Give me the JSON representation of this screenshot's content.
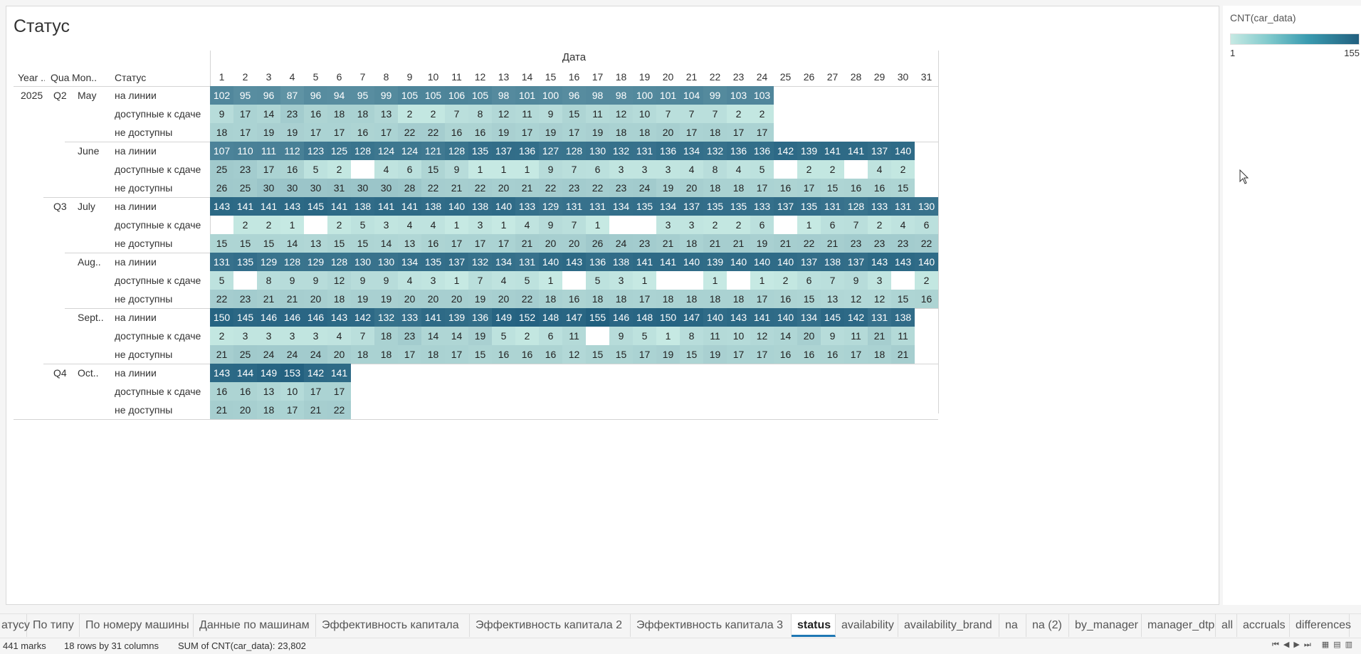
{
  "sheet_title": "Статус",
  "column_header_title": "Дата",
  "row_header_labels": [
    "Year ..",
    "Qua..",
    "Mon..",
    "Статус"
  ],
  "status_labels": [
    "на линии",
    "доступные к сдаче",
    "не доступны"
  ],
  "columns": [
    "1",
    "2",
    "3",
    "4",
    "5",
    "6",
    "7",
    "8",
    "9",
    "10",
    "11",
    "12",
    "13",
    "14",
    "15",
    "16",
    "17",
    "18",
    "19",
    "20",
    "21",
    "22",
    "23",
    "24",
    "25",
    "26",
    "27",
    "28",
    "29",
    "30",
    "31"
  ],
  "rows": [
    {
      "year": "2025",
      "quarter": "Q2",
      "month": "May",
      "values": [
        [
          102,
          95,
          96,
          87,
          96,
          94,
          95,
          99,
          105,
          105,
          106,
          105,
          98,
          101,
          100,
          96,
          98,
          98,
          100,
          101,
          104,
          99,
          103,
          103,
          null,
          null,
          null,
          null,
          null,
          null,
          null
        ],
        [
          9,
          17,
          14,
          23,
          16,
          18,
          18,
          13,
          2,
          2,
          7,
          8,
          12,
          11,
          9,
          15,
          11,
          12,
          10,
          7,
          7,
          7,
          2,
          2,
          null,
          null,
          null,
          null,
          null,
          null,
          null
        ],
        [
          18,
          17,
          19,
          19,
          17,
          17,
          16,
          17,
          22,
          22,
          16,
          16,
          19,
          17,
          19,
          17,
          19,
          18,
          18,
          20,
          17,
          18,
          17,
          17,
          null,
          null,
          null,
          null,
          null,
          null,
          null
        ]
      ]
    },
    {
      "year": "",
      "quarter": "",
      "month": "June",
      "values": [
        [
          107,
          110,
          111,
          112,
          123,
          125,
          128,
          124,
          124,
          121,
          128,
          135,
          137,
          136,
          127,
          128,
          130,
          132,
          131,
          136,
          134,
          132,
          136,
          136,
          142,
          139,
          141,
          141,
          137,
          140,
          null
        ],
        [
          25,
          23,
          17,
          16,
          5,
          2,
          null,
          4,
          6,
          15,
          9,
          1,
          1,
          1,
          9,
          7,
          6,
          3,
          3,
          3,
          4,
          8,
          4,
          5,
          null,
          2,
          2,
          null,
          4,
          2,
          null
        ],
        [
          26,
          25,
          30,
          30,
          30,
          31,
          30,
          30,
          28,
          22,
          21,
          22,
          20,
          21,
          22,
          23,
          22,
          23,
          24,
          19,
          20,
          18,
          18,
          17,
          16,
          17,
          15,
          16,
          16,
          15,
          null
        ]
      ]
    },
    {
      "year": "",
      "quarter": "Q3",
      "month": "July",
      "values": [
        [
          143,
          141,
          141,
          143,
          145,
          141,
          138,
          141,
          141,
          138,
          140,
          138,
          140,
          133,
          129,
          131,
          131,
          134,
          135,
          134,
          137,
          135,
          135,
          133,
          137,
          135,
          131,
          128,
          133,
          131,
          130
        ],
        [
          null,
          2,
          2,
          1,
          null,
          2,
          5,
          3,
          4,
          4,
          1,
          3,
          1,
          4,
          9,
          7,
          1,
          null,
          null,
          3,
          3,
          2,
          2,
          6,
          null,
          1,
          6,
          7,
          2,
          4,
          6
        ],
        [
          15,
          15,
          15,
          14,
          13,
          15,
          15,
          14,
          13,
          16,
          17,
          17,
          17,
          21,
          20,
          20,
          26,
          24,
          23,
          21,
          18,
          21,
          21,
          19,
          21,
          22,
          21,
          23,
          23,
          23,
          22
        ]
      ]
    },
    {
      "year": "",
      "quarter": "",
      "month": "Aug..",
      "values": [
        [
          131,
          135,
          129,
          128,
          129,
          128,
          130,
          130,
          134,
          135,
          137,
          132,
          134,
          131,
          140,
          143,
          136,
          138,
          141,
          141,
          140,
          139,
          140,
          140,
          140,
          137,
          138,
          137,
          143,
          143,
          140
        ],
        [
          5,
          null,
          8,
          9,
          9,
          12,
          9,
          9,
          4,
          3,
          1,
          7,
          4,
          5,
          1,
          null,
          5,
          3,
          1,
          null,
          null,
          1,
          null,
          1,
          2,
          6,
          7,
          9,
          3,
          null,
          2
        ],
        [
          22,
          23,
          21,
          21,
          20,
          18,
          19,
          19,
          20,
          20,
          20,
          19,
          20,
          22,
          18,
          16,
          18,
          18,
          17,
          18,
          18,
          18,
          18,
          17,
          16,
          15,
          13,
          12,
          12,
          15,
          16
        ]
      ]
    },
    {
      "year": "",
      "quarter": "",
      "month": "Sept..",
      "values": [
        [
          150,
          145,
          146,
          146,
          146,
          143,
          142,
          132,
          133,
          141,
          139,
          136,
          149,
          152,
          148,
          147,
          155,
          146,
          148,
          150,
          147,
          140,
          143,
          141,
          140,
          134,
          145,
          142,
          131,
          138,
          null
        ],
        [
          2,
          3,
          3,
          3,
          3,
          4,
          7,
          18,
          23,
          14,
          14,
          19,
          5,
          2,
          6,
          11,
          null,
          9,
          5,
          1,
          8,
          11,
          10,
          12,
          14,
          20,
          9,
          11,
          21,
          11,
          null
        ],
        [
          21,
          25,
          24,
          24,
          24,
          20,
          18,
          18,
          17,
          18,
          17,
          15,
          16,
          16,
          16,
          12,
          15,
          15,
          17,
          19,
          15,
          19,
          17,
          17,
          16,
          16,
          16,
          17,
          18,
          21,
          null
        ]
      ]
    },
    {
      "year": "",
      "quarter": "Q4",
      "month": "Oct..",
      "values": [
        [
          143,
          144,
          149,
          153,
          142,
          141,
          null,
          null,
          null,
          null,
          null,
          null,
          null,
          null,
          null,
          null,
          null,
          null,
          null,
          null,
          null,
          null,
          null,
          null,
          null,
          null,
          null,
          null,
          null,
          null,
          null
        ],
        [
          16,
          16,
          13,
          10,
          17,
          17,
          null,
          null,
          null,
          null,
          null,
          null,
          null,
          null,
          null,
          null,
          null,
          null,
          null,
          null,
          null,
          null,
          null,
          null,
          null,
          null,
          null,
          null,
          null,
          null,
          null
        ],
        [
          21,
          20,
          18,
          17,
          21,
          22,
          null,
          null,
          null,
          null,
          null,
          null,
          null,
          null,
          null,
          null,
          null,
          null,
          null,
          null,
          null,
          null,
          null,
          null,
          null,
          null,
          null,
          null,
          null,
          null,
          null
        ]
      ]
    }
  ],
  "legend": {
    "title": "CNT(car_data)",
    "min": "1",
    "max": "155",
    "min_value": 1,
    "max_value": 155,
    "colors": [
      "#c6e9e3",
      "#22607f"
    ]
  },
  "tabs": [
    "атусу",
    "По типу",
    "По номеру машины",
    "Данные по машинам",
    "Эффективность капитала",
    "Эффективность капитала 2",
    "Эффективность капитала 3",
    "status",
    "availability",
    "availability_brand",
    "na",
    "na (2)",
    "by_manager",
    "manager_dtp",
    "all",
    "accruals",
    "differences"
  ],
  "active_tab": "status",
  "status_bar": {
    "marks": "441 marks",
    "grid": "18 rows by 31 columns",
    "sum": "SUM of CNT(car_data): 23,802"
  }
}
